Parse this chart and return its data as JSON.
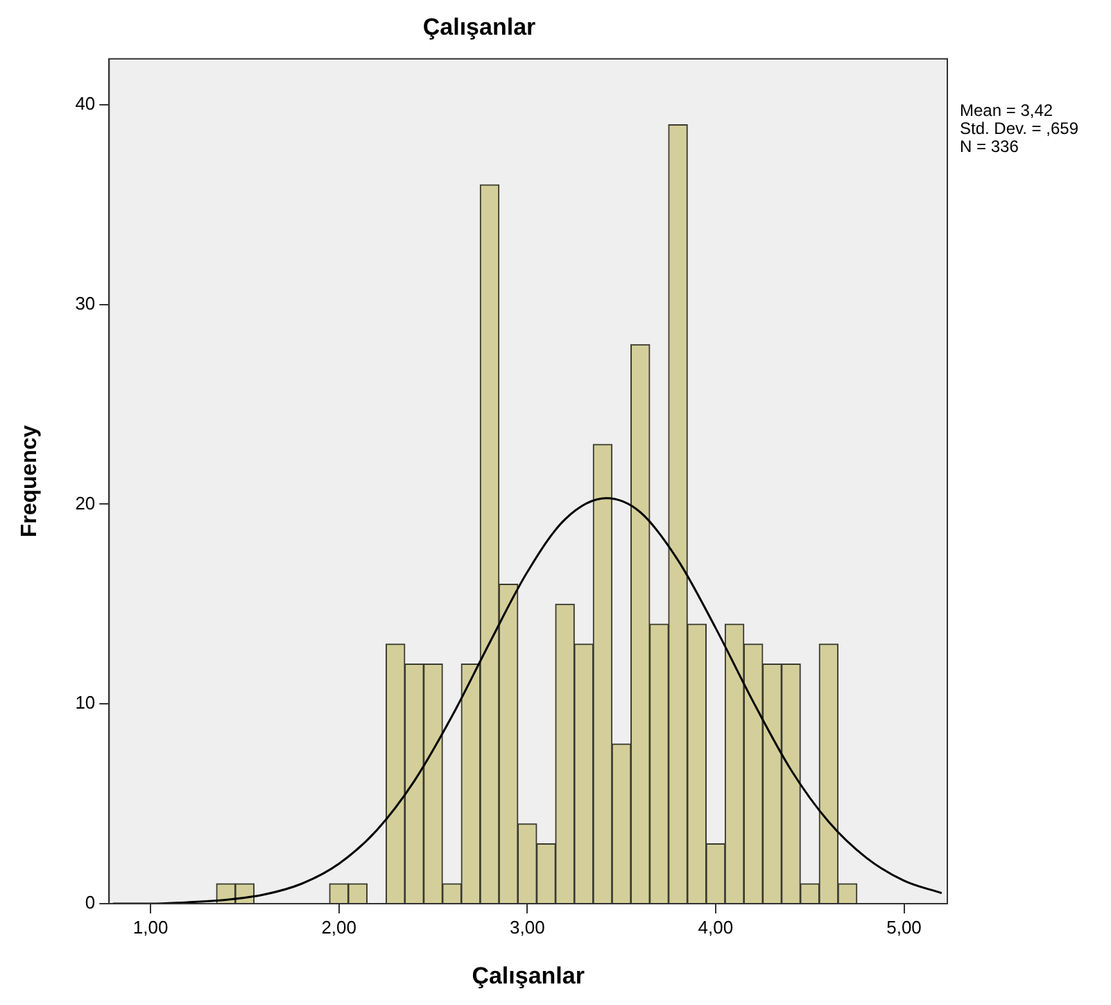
{
  "chart_data": {
    "type": "histogram",
    "title": "Çalışanlar",
    "xlabel": "Çalışanlar",
    "ylabel": "Frequency",
    "bins": [
      1.35,
      1.45,
      1.55,
      1.65,
      1.75,
      1.85,
      1.95,
      2.05,
      2.15,
      2.25,
      2.35,
      2.45,
      2.55,
      2.65,
      2.75,
      2.85,
      2.95,
      3.05,
      3.15,
      3.25,
      3.35,
      3.45,
      3.55,
      3.65,
      3.75,
      3.85,
      3.95,
      4.05,
      4.15,
      4.25,
      4.35,
      4.45,
      4.55,
      4.65,
      4.75
    ],
    "series": [
      {
        "color": "#d4cf9a",
        "values": [
          1,
          1,
          0,
          0,
          0,
          0,
          1,
          1,
          0,
          13,
          12,
          12,
          1,
          12,
          36,
          16,
          4,
          3,
          15,
          13,
          23,
          8,
          28,
          14,
          39,
          14,
          3,
          14,
          13,
          12,
          12,
          1,
          13,
          1
        ]
      },
      {
        "type": "line",
        "color": "#000000",
        "x": [
          0.8,
          1.0,
          1.2,
          1.4,
          1.6,
          1.8,
          2.0,
          2.2,
          2.4,
          2.6,
          2.8,
          3.0,
          3.2,
          3.42,
          3.6,
          3.8,
          4.0,
          4.2,
          4.4,
          4.6,
          4.8,
          5.0,
          5.2
        ],
        "values": [
          0.0,
          0.0,
          0.07,
          0.19,
          0.45,
          0.99,
          2.0,
          3.67,
          6.14,
          9.38,
          13.06,
          16.6,
          19.24,
          20.3,
          19.6,
          17.2,
          13.8,
          10.1,
          6.7,
          4.1,
          2.3,
          1.15,
          0.53
        ]
      }
    ],
    "marker": "none",
    "line_style": "solid",
    "grid": false,
    "legend": false,
    "xlim": [
      0.78,
      5.23
    ],
    "xticks": [
      {
        "value": 1,
        "label": "1,00"
      },
      {
        "value": 2,
        "label": "2,00"
      },
      {
        "value": 3,
        "label": "3,00"
      },
      {
        "value": 4,
        "label": "4,00"
      },
      {
        "value": 5,
        "label": "5,00"
      }
    ],
    "ylim": [
      0,
      42.3
    ],
    "yticks": [
      0,
      10,
      20,
      30,
      40
    ],
    "annotations": [
      "Mean = 3,42",
      "Std. Dev. = ,659",
      "N = 336"
    ]
  }
}
